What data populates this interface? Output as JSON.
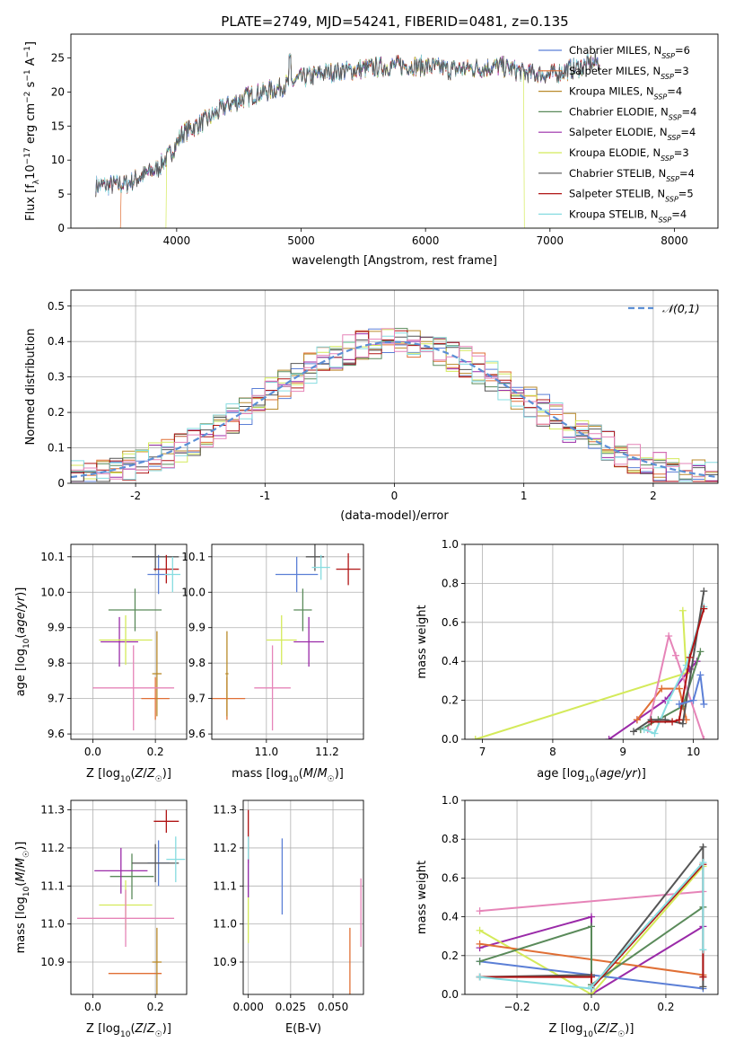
{
  "title": "PLATE=2749, MJD=54241, FIBERID=0481, z=0.135",
  "colors": {
    "chabrier_miles": "#5b7fd6",
    "salpeter_miles": "#e06f35",
    "kroupa_miles": "#b98a2b",
    "chabrier_elodie": "#5a8a5a",
    "salpeter_elodie": "#9a2aa8",
    "kroupa_elodie": "#d4ea5a",
    "chabrier_stelib": "#555555",
    "salpeter_stelib": "#b01515",
    "kroupa_stelib": "#86dce0",
    "gaussian": "#5b8fd6",
    "pink": "#e684b8"
  },
  "chart_data": [
    {
      "type": "line",
      "id": "spectrum",
      "xlabel": "wavelength [Angstrom, rest frame]",
      "ylabel": "Flux [fλ10⁻¹⁷ erg cm⁻² s⁻¹ A⁻¹]",
      "xlim": [
        3150,
        8350
      ],
      "ylim": [
        0,
        28.5
      ],
      "xticks": [
        4000,
        5000,
        6000,
        7000,
        8000
      ],
      "yticks": [
        0,
        5,
        10,
        15,
        20,
        25
      ],
      "grid": false,
      "legend_position": "top-right",
      "legend": [
        "Chabrier MILES, N_SSP=6",
        "Salpeter MILES, N_SSP=3",
        "Kroupa MILES, N_SSP=4",
        "Chabrier ELODIE, N_SSP=4",
        "Salpeter ELODIE, N_SSP=4",
        "Kroupa ELODIE, N_SSP=3",
        "Chabrier STELIB, N_SSP=4",
        "Salpeter STELIB, N_SSP=5",
        "Kroupa STELIB, N_SSP=4"
      ],
      "continuum": {
        "x": [
          3350,
          3600,
          3700,
          3850,
          3950,
          4050,
          4250,
          4400,
          4600,
          4800,
          5000,
          5200,
          5400,
          5600,
          5800,
          6000,
          6200,
          6400,
          6600,
          6800,
          7000,
          7200,
          7400
        ],
        "y": [
          6.2,
          6.5,
          7.5,
          8.8,
          11.0,
          14.0,
          16.0,
          18.0,
          19.5,
          20.5,
          22.0,
          22.8,
          23.2,
          23.6,
          23.9,
          23.8,
          23.3,
          23.5,
          23.8,
          22.8,
          22.5,
          23.5,
          24.5
        ]
      },
      "cutoffs": [
        {
          "series": "Salpeter MILES",
          "x": 3550
        },
        {
          "series": "Kroupa ELODIE",
          "x": 3920
        },
        {
          "series": "Kroupa ELODIE",
          "x": 6790
        },
        {
          "series": "Salpeter STELIB",
          "x": 7420
        },
        {
          "series": "Salpeter MILES",
          "x": 7420
        }
      ]
    },
    {
      "type": "histogram",
      "id": "residuals",
      "xlabel": "(data-model)/error",
      "ylabel": "Normed distribution",
      "xlim": [
        -2.5,
        2.5
      ],
      "ylim": [
        0,
        0.545
      ],
      "xticks": [
        -2,
        -1,
        0,
        1,
        2
      ],
      "yticks": [
        0.0,
        0.1,
        0.2,
        0.3,
        0.4,
        0.5
      ],
      "grid": true,
      "legend_position": "top-right",
      "legend": [
        "𝒩(0,1)"
      ],
      "bin_width": 0.1,
      "bins_start": -2.5,
      "reference_gaussian": {
        "mean": 0,
        "sigma": 1
      }
    },
    {
      "type": "errorbar",
      "id": "age_vs_Z",
      "xlabel": "Z [log10(Z/Z☉)]",
      "ylabel": "age  [log10(age/yr)]",
      "xlim": [
        -0.07,
        0.3
      ],
      "ylim": [
        9.585,
        10.135
      ],
      "xticks": [
        "0.0",
        "0.2"
      ],
      "yticks": [
        "9.6",
        "9.7",
        "9.8",
        "9.9",
        "10.0",
        "10.1"
      ],
      "points": [
        {
          "series": "Chabrier MILES",
          "x": 0.21,
          "xerr": 0.035,
          "y": 10.05,
          "yerr": 0.055
        },
        {
          "series": "Salpeter MILES",
          "x": 0.2,
          "xerr": 0.045,
          "y": 9.7,
          "yerr": 0.06
        },
        {
          "series": "Kroupa MILES",
          "x": 0.205,
          "xerr": 0.015,
          "y": 9.77,
          "yerr": 0.12
        },
        {
          "series": "Chabrier ELODIE",
          "x": 0.135,
          "xerr": 0.085,
          "y": 9.95,
          "yerr": 0.06
        },
        {
          "series": "Salpeter ELODIE",
          "x": 0.085,
          "xerr": 0.06,
          "y": 9.86,
          "yerr": 0.07
        },
        {
          "series": "Kroupa ELODIE",
          "x": 0.105,
          "xerr": 0.085,
          "y": 9.865,
          "yerr": 0.07
        },
        {
          "series": "Chabrier STELIB",
          "x": 0.2,
          "xerr": 0.075,
          "y": 10.1,
          "yerr": 0.04
        },
        {
          "series": "Salpeter STELIB",
          "x": 0.235,
          "xerr": 0.04,
          "y": 10.065,
          "yerr": 0.04
        },
        {
          "series": "Kroupa STELIB",
          "x": 0.255,
          "xerr": 0.025,
          "y": 10.05,
          "yerr": 0.05
        },
        {
          "series": "pink",
          "x": 0.13,
          "xerr": 0.13,
          "y": 9.73,
          "yerr": 0.12
        }
      ]
    },
    {
      "type": "errorbar",
      "id": "age_vs_mass",
      "xlabel": "mass [log10(M/M☉)]",
      "ylabel": "",
      "xlim": [
        10.82,
        11.32
      ],
      "ylim": [
        9.585,
        10.135
      ],
      "xticks": [
        "11.0",
        "11.2"
      ],
      "yticks": [
        "9.6",
        "9.7",
        "9.8",
        "9.9",
        "10.0",
        "10.1"
      ],
      "points": [
        {
          "series": "Chabrier MILES",
          "x": 11.1,
          "xerr": 0.07,
          "y": 10.05,
          "yerr": 0.05
        },
        {
          "series": "Salpeter MILES",
          "x": 10.87,
          "xerr": 0.06,
          "y": 9.7,
          "yerr": 0.06
        },
        {
          "series": "Kroupa MILES",
          "x": 10.87,
          "xerr": 0.005,
          "y": 9.77,
          "yerr": 0.12
        },
        {
          "series": "Chabrier ELODIE",
          "x": 11.12,
          "xerr": 0.03,
          "y": 9.95,
          "yerr": 0.06
        },
        {
          "series": "Salpeter ELODIE",
          "x": 11.14,
          "xerr": 0.05,
          "y": 9.86,
          "yerr": 0.07
        },
        {
          "series": "Kroupa ELODIE",
          "x": 11.05,
          "xerr": 0.05,
          "y": 9.865,
          "yerr": 0.07
        },
        {
          "series": "Chabrier STELIB",
          "x": 11.16,
          "xerr": 0.03,
          "y": 10.1,
          "yerr": 0.04
        },
        {
          "series": "Salpeter STELIB",
          "x": 11.27,
          "xerr": 0.04,
          "y": 10.065,
          "yerr": 0.045
        },
        {
          "series": "Kroupa STELIB",
          "x": 11.18,
          "xerr": 0.03,
          "y": 10.07,
          "yerr": 0.035
        },
        {
          "series": "pink",
          "x": 11.02,
          "xerr": 0.06,
          "y": 9.73,
          "yerr": 0.12
        }
      ]
    },
    {
      "type": "line",
      "id": "mass_weight_vs_age",
      "xlabel": "age  [log10(age/yr)]",
      "ylabel": "mass weight",
      "xlim": [
        6.75,
        10.35
      ],
      "ylim": [
        0,
        1.0
      ],
      "xticks": [
        "7",
        "8",
        "9",
        "10"
      ],
      "yticks": [
        "0.0",
        "0.2",
        "0.4",
        "0.6",
        "0.8",
        "1.0"
      ],
      "series": [
        {
          "name": "Kroupa ELODIE",
          "x": [
            6.9,
            9.9,
            9.85
          ],
          "y": [
            0.0,
            0.34,
            0.66
          ]
        },
        {
          "name": "Salpeter ELODIE",
          "x": [
            8.8,
            9.2,
            9.6,
            9.95,
            10.05
          ],
          "y": [
            0.0,
            0.1,
            0.2,
            0.36,
            0.4
          ]
        },
        {
          "name": "Salpeter MILES",
          "x": [
            9.2,
            9.55,
            9.8,
            9.9
          ],
          "y": [
            0.1,
            0.26,
            0.26,
            0.1
          ]
        },
        {
          "name": "pink",
          "x": [
            9.35,
            9.65,
            9.75,
            10.15
          ],
          "y": [
            0.05,
            0.53,
            0.43,
            0.0
          ]
        },
        {
          "name": "Chabrier ELODIE",
          "x": [
            9.25,
            9.5,
            9.85,
            10.1
          ],
          "y": [
            0.05,
            0.1,
            0.17,
            0.45
          ]
        },
        {
          "name": "Kroupa STELIB",
          "x": [
            9.3,
            9.45,
            9.65,
            9.9,
            10.15
          ],
          "y": [
            0.05,
            0.03,
            0.2,
            0.38,
            0.68
          ]
        },
        {
          "name": "Chabrier STELIB",
          "x": [
            9.15,
            9.4,
            9.6,
            9.85,
            10.15
          ],
          "y": [
            0.04,
            0.1,
            0.1,
            0.08,
            0.76
          ]
        },
        {
          "name": "Salpeter STELIB",
          "x": [
            9.4,
            9.7,
            9.8,
            9.95,
            10.15
          ],
          "y": [
            0.09,
            0.09,
            0.1,
            0.42,
            0.67
          ]
        },
        {
          "name": "Chabrier MILES",
          "x": [
            9.8,
            10.0,
            10.1,
            10.15
          ],
          "y": [
            0.18,
            0.2,
            0.33,
            0.18
          ]
        }
      ]
    },
    {
      "type": "errorbar",
      "id": "mass_vs_Z",
      "xlabel": "Z [log10(Z/Z☉)]",
      "ylabel": "mass [log10(M/M☉)]",
      "xlim": [
        -0.07,
        0.3
      ],
      "ylim": [
        10.815,
        11.325
      ],
      "xticks": [
        "0.0",
        "0.2"
      ],
      "yticks": [
        "10.9",
        "11.0",
        "11.1",
        "11.2",
        "11.3"
      ],
      "points": [
        {
          "series": "Chabrier MILES",
          "x": 0.21,
          "xerr": 0.035,
          "y": 11.16,
          "yerr": 0.06
        },
        {
          "series": "Salpeter MILES",
          "x": 0.135,
          "xerr": 0.085,
          "y": 10.87,
          "yerr": 0.0
        },
        {
          "series": "Kroupa MILES",
          "x": 0.205,
          "xerr": 0.015,
          "y": 10.9,
          "yerr": 0.09
        },
        {
          "series": "Chabrier ELODIE",
          "x": 0.125,
          "xerr": 0.07,
          "y": 11.125,
          "yerr": 0.06
        },
        {
          "series": "Salpeter ELODIE",
          "x": 0.09,
          "xerr": 0.085,
          "y": 11.14,
          "yerr": 0.06
        },
        {
          "series": "Kroupa ELODIE",
          "x": 0.105,
          "xerr": 0.085,
          "y": 11.05,
          "yerr": 0.065
        },
        {
          "series": "Chabrier STELIB",
          "x": 0.2,
          "xerr": 0.075,
          "y": 11.16,
          "yerr": 0.05
        },
        {
          "series": "Salpeter STELIB",
          "x": 0.235,
          "xerr": 0.04,
          "y": 11.27,
          "yerr": 0.03
        },
        {
          "series": "Kroupa STELIB",
          "x": 0.265,
          "xerr": 0.03,
          "y": 11.17,
          "yerr": 0.06
        },
        {
          "series": "pink",
          "x": 0.105,
          "xerr": 0.155,
          "y": 11.015,
          "yerr": 0.075
        }
      ]
    },
    {
      "type": "errorbar",
      "id": "mass_vs_EBV",
      "xlabel": "E(B-V)",
      "ylabel": "",
      "xlim": [
        -0.003,
        0.068
      ],
      "ylim": [
        10.815,
        11.325
      ],
      "xticks": [
        "0.000",
        "0.025",
        "0.050"
      ],
      "yticks": [
        "10.9",
        "11.0",
        "11.1",
        "11.2",
        "11.3"
      ],
      "points": [
        {
          "series": "Chabrier MILES",
          "x": 0.02,
          "xerr": 0,
          "y": 11.125,
          "yerr": 0.1
        },
        {
          "series": "Salpeter MILES",
          "x": 0.06,
          "xerr": 0,
          "y": 10.9,
          "yerr": 0.09
        },
        {
          "series": "pink",
          "x": 0.0665,
          "xerr": 0,
          "y": 11.03,
          "yerr": 0.09
        },
        {
          "series": "Salpeter STELIB",
          "x": 0.0,
          "xerr": 0,
          "y": 11.23,
          "yerr": 0.07
        },
        {
          "series": "Kroupa ELODIE",
          "x": 0.0,
          "xerr": 0,
          "y": 11.02,
          "yerr": 0.07
        },
        {
          "series": "Kroupa STELIB",
          "x": 0.0,
          "xerr": 0,
          "y": 11.15,
          "yerr": 0.08
        },
        {
          "series": "Salpeter ELODIE",
          "x": 0.0,
          "xerr": 0,
          "y": 11.12,
          "yerr": 0.05
        }
      ]
    },
    {
      "type": "line",
      "id": "mass_weight_vs_Z",
      "xlabel": "Z [log10(Z/Z☉)]",
      "ylabel": "mass weight",
      "xlim": [
        -0.34,
        0.34
      ],
      "ylim": [
        0,
        1.0
      ],
      "xticks": [
        "−0.2",
        "0.0",
        "0.2"
      ],
      "yticks": [
        "0.0",
        "0.2",
        "0.4",
        "0.6",
        "0.8",
        "1.0"
      ],
      "series": [
        {
          "name": "pink",
          "x": [
            -0.3,
            0.3
          ],
          "y": [
            0.43,
            0.53
          ]
        },
        {
          "name": "Salpeter ELODIE",
          "x": [
            -0.3,
            0.0,
            0.0,
            0.3
          ],
          "y": [
            0.24,
            0.4,
            0.0,
            0.35
          ]
        },
        {
          "name": "Kroupa ELODIE",
          "x": [
            -0.3,
            0.0,
            0.3
          ],
          "y": [
            0.33,
            0.0,
            0.66
          ]
        },
        {
          "name": "Salpeter MILES",
          "x": [
            -0.3,
            0.3,
            0.3
          ],
          "y": [
            0.26,
            0.1,
            0.09
          ]
        },
        {
          "name": "Chabrier MILES",
          "x": [
            -0.3,
            0.0,
            0.3
          ],
          "y": [
            0.17,
            0.1,
            0.03
          ]
        },
        {
          "name": "Chabrier ELODIE",
          "x": [
            -0.3,
            0.0,
            0.0,
            0.3
          ],
          "y": [
            0.17,
            0.35,
            0.05,
            0.45
          ]
        },
        {
          "name": "Chabrier STELIB",
          "x": [
            -0.3,
            0.0,
            0.0,
            0.3,
            0.3
          ],
          "y": [
            0.09,
            0.1,
            0.03,
            0.76,
            0.04
          ]
        },
        {
          "name": "Salpeter STELIB",
          "x": [
            -0.3,
            0.0,
            0.0,
            0.3,
            0.3
          ],
          "y": [
            0.09,
            0.09,
            0.03,
            0.67,
            0.09
          ]
        },
        {
          "name": "Kroupa STELIB",
          "x": [
            -0.3,
            0.0,
            0.0,
            0.3,
            0.3
          ],
          "y": [
            0.09,
            0.03,
            0.04,
            0.68,
            0.23
          ]
        }
      ]
    }
  ]
}
